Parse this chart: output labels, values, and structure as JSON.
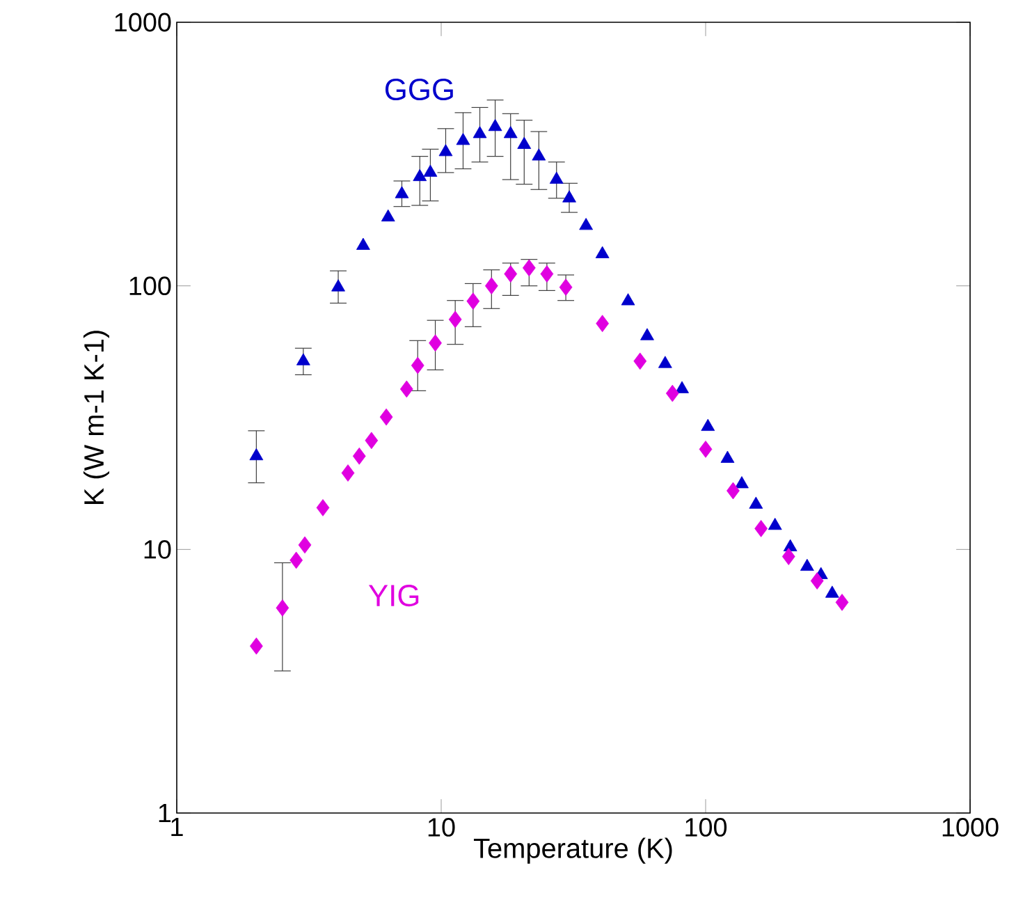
{
  "chart_data": {
    "type": "scatter",
    "xlabel": "Temperature (K)",
    "ylabel": "K (W m-1 K-1)",
    "log": "xy",
    "grid": false,
    "legend": false,
    "xlim": [
      1,
      1000
    ],
    "xticks": [
      1,
      10,
      100,
      1000
    ],
    "ylim": [
      1,
      1000
    ],
    "yticks": [
      1,
      10,
      100,
      1000
    ],
    "series": [
      {
        "name": "GGG",
        "color": "#0000cc",
        "marker": "triangle",
        "x": [
          2.0,
          3.01,
          4.08,
          5.07,
          6.3,
          7.1,
          8.3,
          9.1,
          10.4,
          12.1,
          14.0,
          16.0,
          18.3,
          20.6,
          23.4,
          27.3,
          30.5,
          35.3,
          40.7,
          50.9,
          60.1,
          70.3,
          81.4,
          102,
          121,
          137,
          155,
          183,
          209,
          242,
          273,
          301
        ],
        "values": [
          22.6,
          51.8,
          98.8,
          142,
          182,
          223,
          259,
          269,
          322,
          355,
          377,
          401,
          377,
          343,
          310,
          253,
          215,
          169,
          132,
          87.5,
          64.5,
          50.6,
          40.6,
          29.2,
          22.1,
          17.7,
          14.8,
          12.3,
          10.2,
          8.6,
          8.0,
          6.8
        ],
        "errors": [
          [
            17.9,
            28.2
          ],
          [
            46,
            58
          ],
          [
            86,
            114
          ],
          null,
          null,
          [
            200,
            250
          ],
          [
            202,
            310
          ],
          [
            210,
            330
          ],
          [
            269,
            395
          ],
          [
            278,
            454
          ],
          [
            295,
            475
          ],
          [
            310,
            507
          ],
          [
            253,
            450
          ],
          [
            243,
            425
          ],
          [
            232,
            385
          ],
          [
            215,
            295
          ],
          [
            190,
            245
          ],
          null,
          null,
          null,
          null,
          null,
          null,
          null,
          null,
          null,
          null,
          null,
          null,
          null,
          null,
          null
        ]
      },
      {
        "name": "YIG",
        "color": "#e000e0",
        "marker": "diamond",
        "x": [
          2.0,
          2.51,
          2.83,
          3.05,
          3.57,
          4.44,
          4.9,
          5.45,
          6.2,
          7.4,
          8.15,
          9.5,
          11.3,
          13.2,
          15.5,
          18.3,
          21.5,
          25.1,
          29.6,
          40.7,
          56.5,
          74.9,
          100,
          127,
          162,
          206,
          264,
          328
        ],
        "values": [
          4.3,
          6.0,
          9.1,
          10.4,
          14.4,
          19.5,
          22.6,
          25.9,
          31.8,
          40.6,
          49.9,
          60.7,
          74.6,
          87.5,
          100,
          111,
          117,
          111,
          98.8,
          72,
          51.8,
          39.1,
          24.0,
          16.7,
          12.0,
          9.4,
          7.6,
          6.3
        ],
        "errors": [
          null,
          [
            3.46,
            8.9
          ],
          null,
          null,
          null,
          null,
          null,
          null,
          null,
          null,
          [
            40,
            62
          ],
          [
            48,
            74
          ],
          [
            60,
            88
          ],
          [
            70,
            102
          ],
          [
            82,
            115
          ],
          [
            92,
            122
          ],
          [
            100,
            126
          ],
          [
            96,
            122
          ],
          [
            88,
            110
          ],
          null,
          null,
          null,
          null,
          null,
          null,
          null,
          null,
          null
        ]
      }
    ]
  }
}
